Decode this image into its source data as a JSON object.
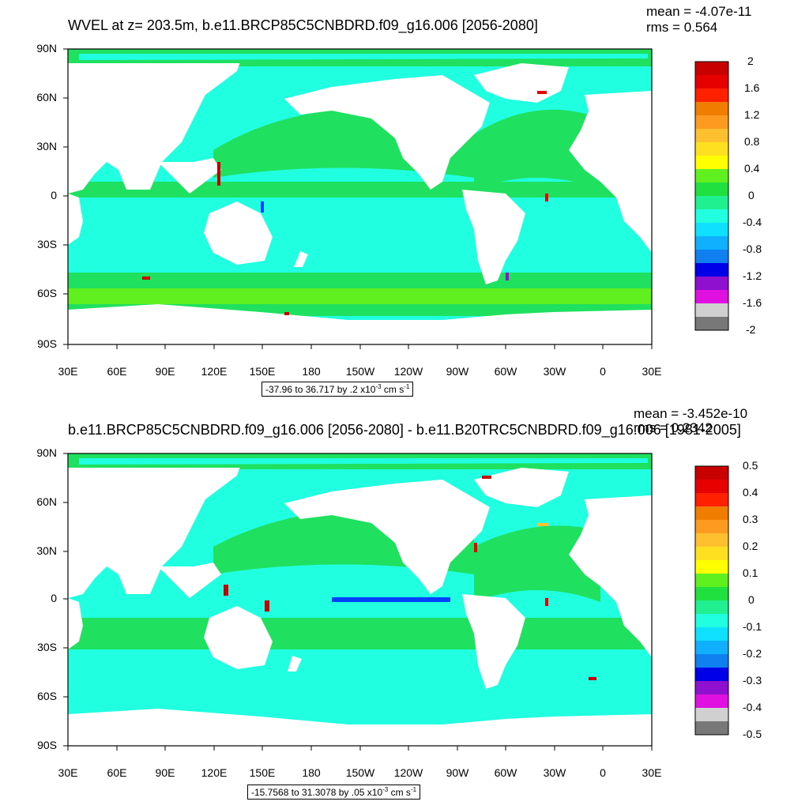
{
  "panels": [
    {
      "title": "WVEL at z= 203.5m, b.e11.BRCP85C5CNBDRD.f09_g16.006 [2056-2080]",
      "mean": "mean = -4.07e-11",
      "rms": "rms = 0.564",
      "caption_prefix": "-37.96 to 36.717 by .2 x10",
      "caption_exp": "-3",
      "caption_unit": " cm s",
      "caption_unit_exp": "-1",
      "colorbar_labels": [
        "2",
        "1.6",
        "1.2",
        "0.8",
        "0.4",
        "0",
        "-0.4",
        "-0.8",
        "-1.2",
        "-1.6",
        "-2"
      ]
    },
    {
      "title": "b.e11.BRCP85C5CNBDRD.f09_g16.006 [2056-2080] - b.e11.B20TRC5CNBDRD.f09_g16.006 [1981-2005]",
      "mean": "mean = -3.452e-10",
      "rms": "rms = 0.2342",
      "caption_prefix": "-15.7568 to 31.3078 by .05 x10",
      "caption_exp": "-3",
      "caption_unit": " cm s",
      "caption_unit_exp": "-1",
      "colorbar_labels": [
        "0.5",
        "0.4",
        "0.3",
        "0.2",
        "0.1",
        "0",
        "-0.1",
        "-0.2",
        "-0.3",
        "-0.4",
        "-0.5"
      ]
    }
  ],
  "lat_labels": [
    "90N",
    "60N",
    "30N",
    "0",
    "30S",
    "60S",
    "90S"
  ],
  "lon_labels": [
    "30E",
    "60E",
    "90E",
    "120E",
    "150E",
    "180",
    "150W",
    "120W",
    "90W",
    "60W",
    "30W",
    "0",
    "30E"
  ],
  "colorbar_colors": [
    "#c80000",
    "#e60000",
    "#ff2000",
    "#f07c00",
    "#ff9a20",
    "#ffc030",
    "#ffe020",
    "#ffff00",
    "#60f020",
    "#20e040",
    "#20f090",
    "#20ffe0",
    "#10e0ff",
    "#10b0ff",
    "#1080f0",
    "#0040ff",
    "#0000e8",
    "#9010d0",
    "#e010e0",
    "#d0d0d0",
    "#787878"
  ],
  "map_colors": {
    "ocean": "#20ffe0",
    "band": "#20e060",
    "land": "#ffffff"
  }
}
